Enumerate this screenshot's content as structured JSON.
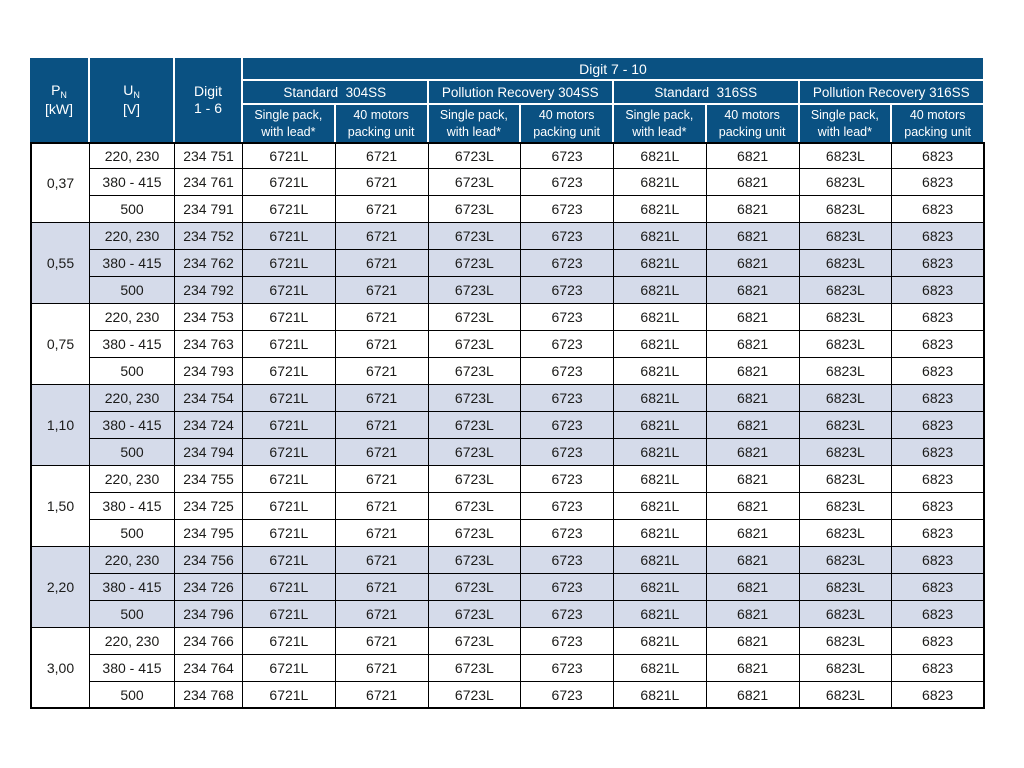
{
  "colors": {
    "header_bg": "#0a5182",
    "header_text": "#ffffff",
    "alt_row_bg": "#d5dbea",
    "border": "#000000",
    "body_text": "#1b1b19"
  },
  "table": {
    "header": {
      "pn": {
        "symbol": "P",
        "sub": "N",
        "unit": "[kW]"
      },
      "un": {
        "symbol": "U",
        "sub": "N",
        "unit": "[V]"
      },
      "digit16": "Digit\n1 - 6",
      "digit710": "Digit  7 - 10",
      "groups": [
        "Standard  304SS",
        "Pollution Recovery 304SS",
        "Standard  316SS",
        "Pollution Recovery 316SS"
      ],
      "leaf_single": "Single pack,\nwith lead*",
      "leaf_packing": "40 motors\npacking unit"
    },
    "row_groups": [
      {
        "pn": "0,37",
        "rows": [
          {
            "un": "220, 230",
            "digits16": "234 751",
            "digits710": [
              "6721L",
              "6721",
              "6723L",
              "6723",
              "6821L",
              "6821",
              "6823L",
              "6823"
            ]
          },
          {
            "un": "380 - 415",
            "digits16": "234 761",
            "digits710": [
              "6721L",
              "6721",
              "6723L",
              "6723",
              "6821L",
              "6821",
              "6823L",
              "6823"
            ]
          },
          {
            "un": "500",
            "digits16": "234 791",
            "digits710": [
              "6721L",
              "6721",
              "6723L",
              "6723",
              "6821L",
              "6821",
              "6823L",
              "6823"
            ]
          }
        ]
      },
      {
        "pn": "0,55",
        "rows": [
          {
            "un": "220, 230",
            "digits16": "234 752",
            "digits710": [
              "6721L",
              "6721",
              "6723L",
              "6723",
              "6821L",
              "6821",
              "6823L",
              "6823"
            ]
          },
          {
            "un": "380 - 415",
            "digits16": "234 762",
            "digits710": [
              "6721L",
              "6721",
              "6723L",
              "6723",
              "6821L",
              "6821",
              "6823L",
              "6823"
            ]
          },
          {
            "un": "500",
            "digits16": "234 792",
            "digits710": [
              "6721L",
              "6721",
              "6723L",
              "6723",
              "6821L",
              "6821",
              "6823L",
              "6823"
            ]
          }
        ]
      },
      {
        "pn": "0,75",
        "rows": [
          {
            "un": "220, 230",
            "digits16": "234 753",
            "digits710": [
              "6721L",
              "6721",
              "6723L",
              "6723",
              "6821L",
              "6821",
              "6823L",
              "6823"
            ]
          },
          {
            "un": "380 - 415",
            "digits16": "234 763",
            "digits710": [
              "6721L",
              "6721",
              "6723L",
              "6723",
              "6821L",
              "6821",
              "6823L",
              "6823"
            ]
          },
          {
            "un": "500",
            "digits16": "234 793",
            "digits710": [
              "6721L",
              "6721",
              "6723L",
              "6723",
              "6821L",
              "6821",
              "6823L",
              "6823"
            ]
          }
        ]
      },
      {
        "pn": "1,10",
        "rows": [
          {
            "un": "220, 230",
            "digits16": "234 754",
            "digits710": [
              "6721L",
              "6721",
              "6723L",
              "6723",
              "6821L",
              "6821",
              "6823L",
              "6823"
            ]
          },
          {
            "un": "380 - 415",
            "digits16": "234 724",
            "digits710": [
              "6721L",
              "6721",
              "6723L",
              "6723",
              "6821L",
              "6821",
              "6823L",
              "6823"
            ]
          },
          {
            "un": "500",
            "digits16": "234 794",
            "digits710": [
              "6721L",
              "6721",
              "6723L",
              "6723",
              "6821L",
              "6821",
              "6823L",
              "6823"
            ]
          }
        ]
      },
      {
        "pn": "1,50",
        "rows": [
          {
            "un": "220, 230",
            "digits16": "234 755",
            "digits710": [
              "6721L",
              "6721",
              "6723L",
              "6723",
              "6821L",
              "6821",
              "6823L",
              "6823"
            ]
          },
          {
            "un": "380 - 415",
            "digits16": "234 725",
            "digits710": [
              "6721L",
              "6721",
              "6723L",
              "6723",
              "6821L",
              "6821",
              "6823L",
              "6823"
            ]
          },
          {
            "un": "500",
            "digits16": "234 795",
            "digits710": [
              "6721L",
              "6721",
              "6723L",
              "6723",
              "6821L",
              "6821",
              "6823L",
              "6823"
            ]
          }
        ]
      },
      {
        "pn": "2,20",
        "rows": [
          {
            "un": "220, 230",
            "digits16": "234 756",
            "digits710": [
              "6721L",
              "6721",
              "6723L",
              "6723",
              "6821L",
              "6821",
              "6823L",
              "6823"
            ]
          },
          {
            "un": "380 - 415",
            "digits16": "234 726",
            "digits710": [
              "6721L",
              "6721",
              "6723L",
              "6723",
              "6821L",
              "6821",
              "6823L",
              "6823"
            ]
          },
          {
            "un": "500",
            "digits16": "234 796",
            "digits710": [
              "6721L",
              "6721",
              "6723L",
              "6723",
              "6821L",
              "6821",
              "6823L",
              "6823"
            ]
          }
        ]
      },
      {
        "pn": "3,00",
        "rows": [
          {
            "un": "220, 230",
            "digits16": "234 766",
            "digits710": [
              "6721L",
              "6721",
              "6723L",
              "6723",
              "6821L",
              "6821",
              "6823L",
              "6823"
            ]
          },
          {
            "un": "380 - 415",
            "digits16": "234 764",
            "digits710": [
              "6721L",
              "6721",
              "6723L",
              "6723",
              "6821L",
              "6821",
              "6823L",
              "6823"
            ]
          },
          {
            "un": "500",
            "digits16": "234 768",
            "digits710": [
              "6721L",
              "6721",
              "6723L",
              "6723",
              "6821L",
              "6821",
              "6823L",
              "6823"
            ]
          }
        ]
      }
    ]
  }
}
